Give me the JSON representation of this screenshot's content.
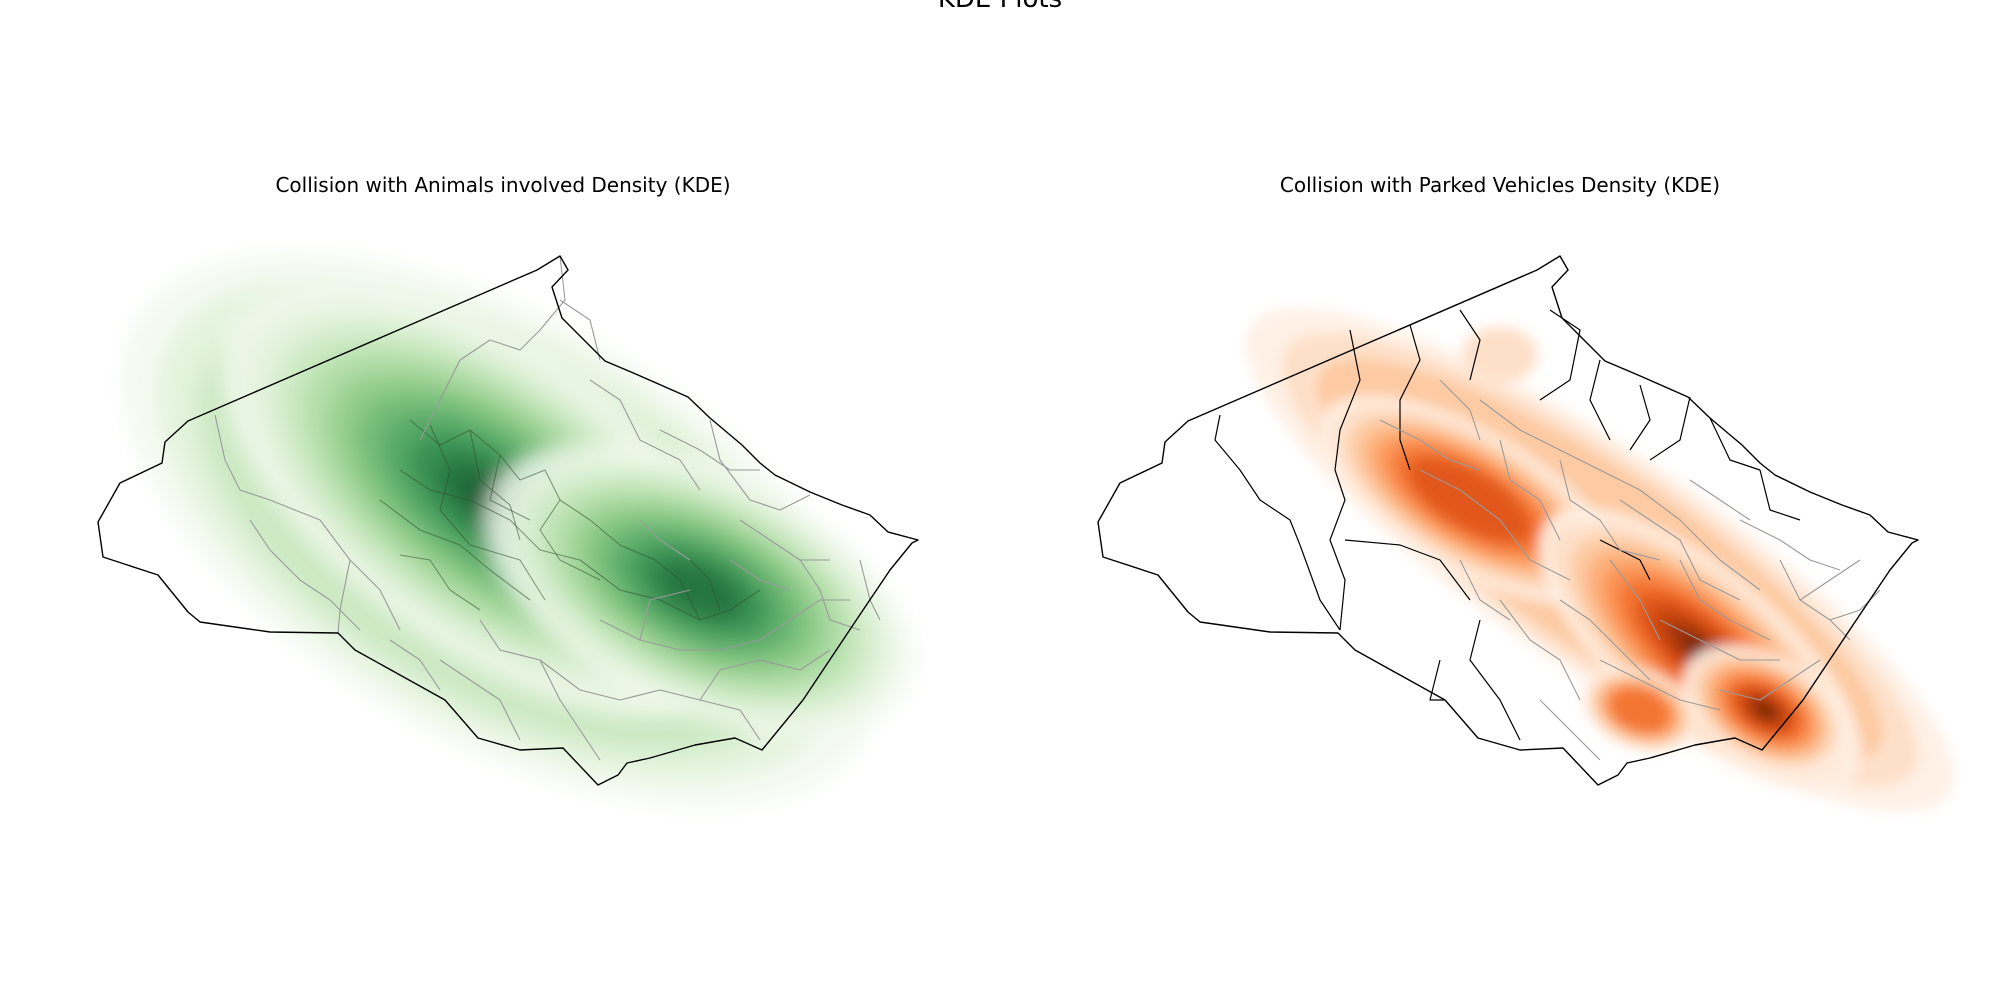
{
  "figure": {
    "suptitle": "KDE Plots"
  },
  "panels": [
    {
      "title": "Collision with Animals involved Density (KDE)",
      "colormap": "Greens",
      "colors": [
        "#f2f9ef",
        "#e0f2da",
        "#c9e8c0",
        "#aedca4",
        "#8fcc8a",
        "#6fb975",
        "#4fa461",
        "#358c4f",
        "#22713c",
        "#0f552c"
      ]
    },
    {
      "title": "Collision with Parked Vehicles Density (KDE)",
      "colormap": "Oranges",
      "colors": [
        "#fff0e3",
        "#fedfc6",
        "#fdc89f",
        "#fdad76",
        "#fb9050",
        "#f27130",
        "#e0561a",
        "#c4420d",
        "#9b3408",
        "#6e2606"
      ]
    }
  ],
  "chart_data": [
    {
      "type": "heatmap",
      "title": "Collision with Animals involved Density (KDE)",
      "colormap": "Greens",
      "axes": "off",
      "levels": 10,
      "hotspots": [
        {
          "rank": 1,
          "location": "west-central (upper-left interior)",
          "relative_density": 1.0
        },
        {
          "rank": 2,
          "location": "south-east interior",
          "relative_density": 0.75
        }
      ]
    },
    {
      "type": "heatmap",
      "title": "Collision with Parked Vehicles Density (KDE)",
      "colormap": "Oranges",
      "axes": "off",
      "levels": 10,
      "hotspots": [
        {
          "rank": 1,
          "location": "south-east interior",
          "relative_density": 1.0
        },
        {
          "rank": 2,
          "location": "south-east corner",
          "relative_density": 0.95
        },
        {
          "rank": 3,
          "location": "central corridor",
          "relative_density": 0.6
        }
      ]
    }
  ]
}
